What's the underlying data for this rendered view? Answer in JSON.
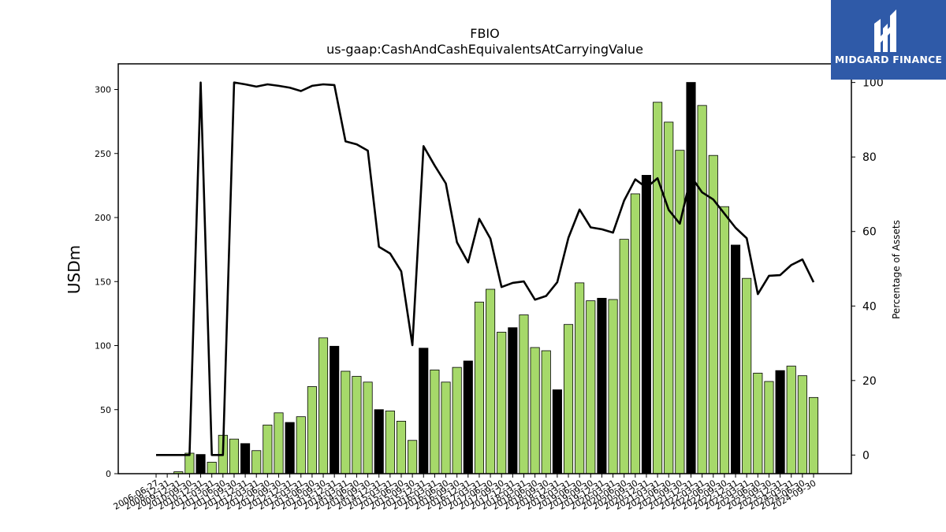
{
  "chart_data": {
    "type": "bar",
    "title": "FBIO",
    "subtitle": "us-gaap:CashAndCashEquivalentsAtCarryingValue",
    "ylabel": "USDm",
    "y2label": "Percentage of Assets",
    "ylim": [
      0,
      320
    ],
    "y2lim": [
      -5,
      105
    ],
    "yticks": [
      0,
      50,
      100,
      150,
      200,
      250,
      300
    ],
    "y2ticks": [
      0,
      20,
      40,
      60,
      80,
      100
    ],
    "grid": false,
    "colors": {
      "bar_annual": "#000000",
      "bar_quarter": "#a6d96a",
      "bar_edge": "#000000",
      "line": "#000000"
    },
    "categories": [
      "2006-06-27",
      "2008-12-31",
      "2009-12-31",
      "2010-09-30",
      "2010-12-31",
      "2011-03-31",
      "2011-06-30",
      "2011-09-30",
      "2011-12-31",
      "2012-03-31",
      "2012-06-30",
      "2012-09-30",
      "2012-12-31",
      "2013-03-31",
      "2013-06-30",
      "2013-09-30",
      "2013-12-31",
      "2014-03-31",
      "2014-06-30",
      "2014-09-30",
      "2014-12-31",
      "2015-03-31",
      "2015-06-30",
      "2015-09-30",
      "2015-12-31",
      "2016-03-31",
      "2016-06-30",
      "2016-09-30",
      "2016-12-31",
      "2017-03-31",
      "2017-06-30",
      "2017-09-30",
      "2017-12-31",
      "2018-03-31",
      "2018-06-30",
      "2018-09-30",
      "2018-12-31",
      "2019-03-31",
      "2019-06-30",
      "2019-09-30",
      "2019-12-31",
      "2020-03-31",
      "2020-06-30",
      "2020-09-30",
      "2020-12-31",
      "2021-03-31",
      "2021-06-30",
      "2021-09-30",
      "2021-12-31",
      "2022-03-31",
      "2022-06-30",
      "2022-09-30",
      "2022-12-31",
      "2023-03-31",
      "2023-06-30",
      "2023-09-30",
      "2023-12-31",
      "2024-03-31",
      "2024-06-30",
      "2024-09-30"
    ],
    "series": [
      {
        "kind": "bar",
        "values": [
          0,
          0,
          1.5,
          16,
          15,
          9,
          30,
          27,
          23.5,
          18,
          38,
          47.5,
          40,
          44.5,
          68,
          106,
          99.5,
          80,
          76,
          71.5,
          50,
          49,
          41,
          26,
          98,
          81,
          71.5,
          83,
          88,
          134,
          144,
          110.5,
          114,
          124,
          98.5,
          96,
          65.5,
          116.5,
          149,
          135,
          137,
          136,
          183,
          218.5,
          233,
          290,
          274.5,
          252.5,
          305.5,
          287.5,
          248.5,
          208.5,
          178.5,
          152.5,
          78.5,
          72,
          80.5,
          84,
          76.5,
          59.5
        ],
        "annual": [
          false,
          false,
          false,
          false,
          true,
          false,
          false,
          false,
          true,
          false,
          false,
          false,
          true,
          false,
          false,
          false,
          true,
          false,
          false,
          false,
          true,
          false,
          false,
          false,
          true,
          false,
          false,
          false,
          true,
          false,
          false,
          false,
          true,
          false,
          false,
          false,
          true,
          false,
          false,
          false,
          true,
          false,
          false,
          false,
          true,
          false,
          false,
          false,
          true,
          false,
          false,
          false,
          true,
          false,
          false,
          false,
          true,
          false,
          false,
          false
        ]
      },
      {
        "kind": "line",
        "axis": "right",
        "values": [
          0,
          0,
          0,
          0,
          100,
          0,
          0,
          100,
          99.5,
          98.9,
          99.5,
          99.1,
          98.6,
          97.7,
          99.1,
          99.5,
          99.3,
          84.2,
          83.4,
          81.7,
          55.9,
          54.1,
          49.3,
          29.5,
          82.9,
          77.7,
          72.9,
          57.1,
          51.7,
          63.4,
          58.1,
          45.1,
          46.2,
          46.6,
          41.7,
          42.7,
          46.4,
          58.3,
          65.9,
          61.1,
          60.6,
          59.7,
          68.3,
          74,
          71.8,
          74.3,
          65.8,
          62.1,
          74.8,
          70.5,
          68.6,
          64.8,
          61,
          58.2,
          43.2,
          48.1,
          48.3,
          51,
          52.5,
          46.4
        ]
      }
    ]
  },
  "logo": {
    "text": "MIDGARD FINANCE"
  }
}
